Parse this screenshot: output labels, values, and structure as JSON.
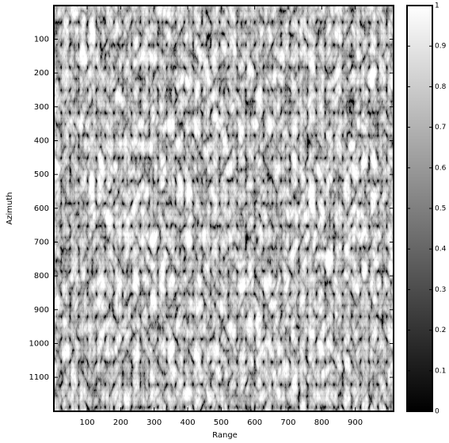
{
  "chart_data": {
    "type": "image",
    "xlabel": "Range",
    "ylabel": "Azimuth",
    "xlim": [
      0.5,
      1014.5
    ],
    "ylim": [
      0.5,
      1200.5
    ],
    "y_reversed": true,
    "xticks": [
      100,
      200,
      300,
      400,
      500,
      600,
      700,
      800,
      900
    ],
    "yticks": [
      100,
      200,
      300,
      400,
      500,
      600,
      700,
      800,
      900,
      1000,
      1100
    ],
    "colormap": "gray",
    "colorbar": {
      "clim": [
        0,
        1
      ],
      "ticks": [
        0,
        0.1,
        0.2,
        0.3,
        0.4,
        0.5,
        0.6,
        0.7,
        0.8,
        0.9,
        1
      ]
    }
  }
}
